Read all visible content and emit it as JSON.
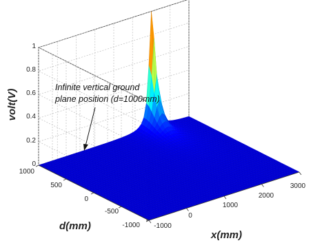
{
  "chart_data": {
    "type": "surface",
    "title": "",
    "zlabel": "volt(V)",
    "xlabel": "x(mm)",
    "ylabel": "d(mm)",
    "zticks": [
      "0",
      "0.2",
      "0.4",
      "0.6",
      "0.8",
      "1"
    ],
    "xticks": [
      "-1000",
      "0",
      "1000",
      "2000",
      "3000"
    ],
    "dticks": [
      "1000",
      "500",
      "0",
      "-500",
      "-1000"
    ],
    "xlim": [
      -1000,
      3000
    ],
    "dlim": [
      -1000,
      1000
    ],
    "zlim": [
      0,
      1
    ],
    "peak": {
      "x": 2000,
      "d": 1000,
      "volt": 1
    },
    "grid": true,
    "colormap": "jet",
    "annotation": {
      "line1": "Infinite vertical ground",
      "line2": "plane position (d=1000mm)"
    }
  }
}
